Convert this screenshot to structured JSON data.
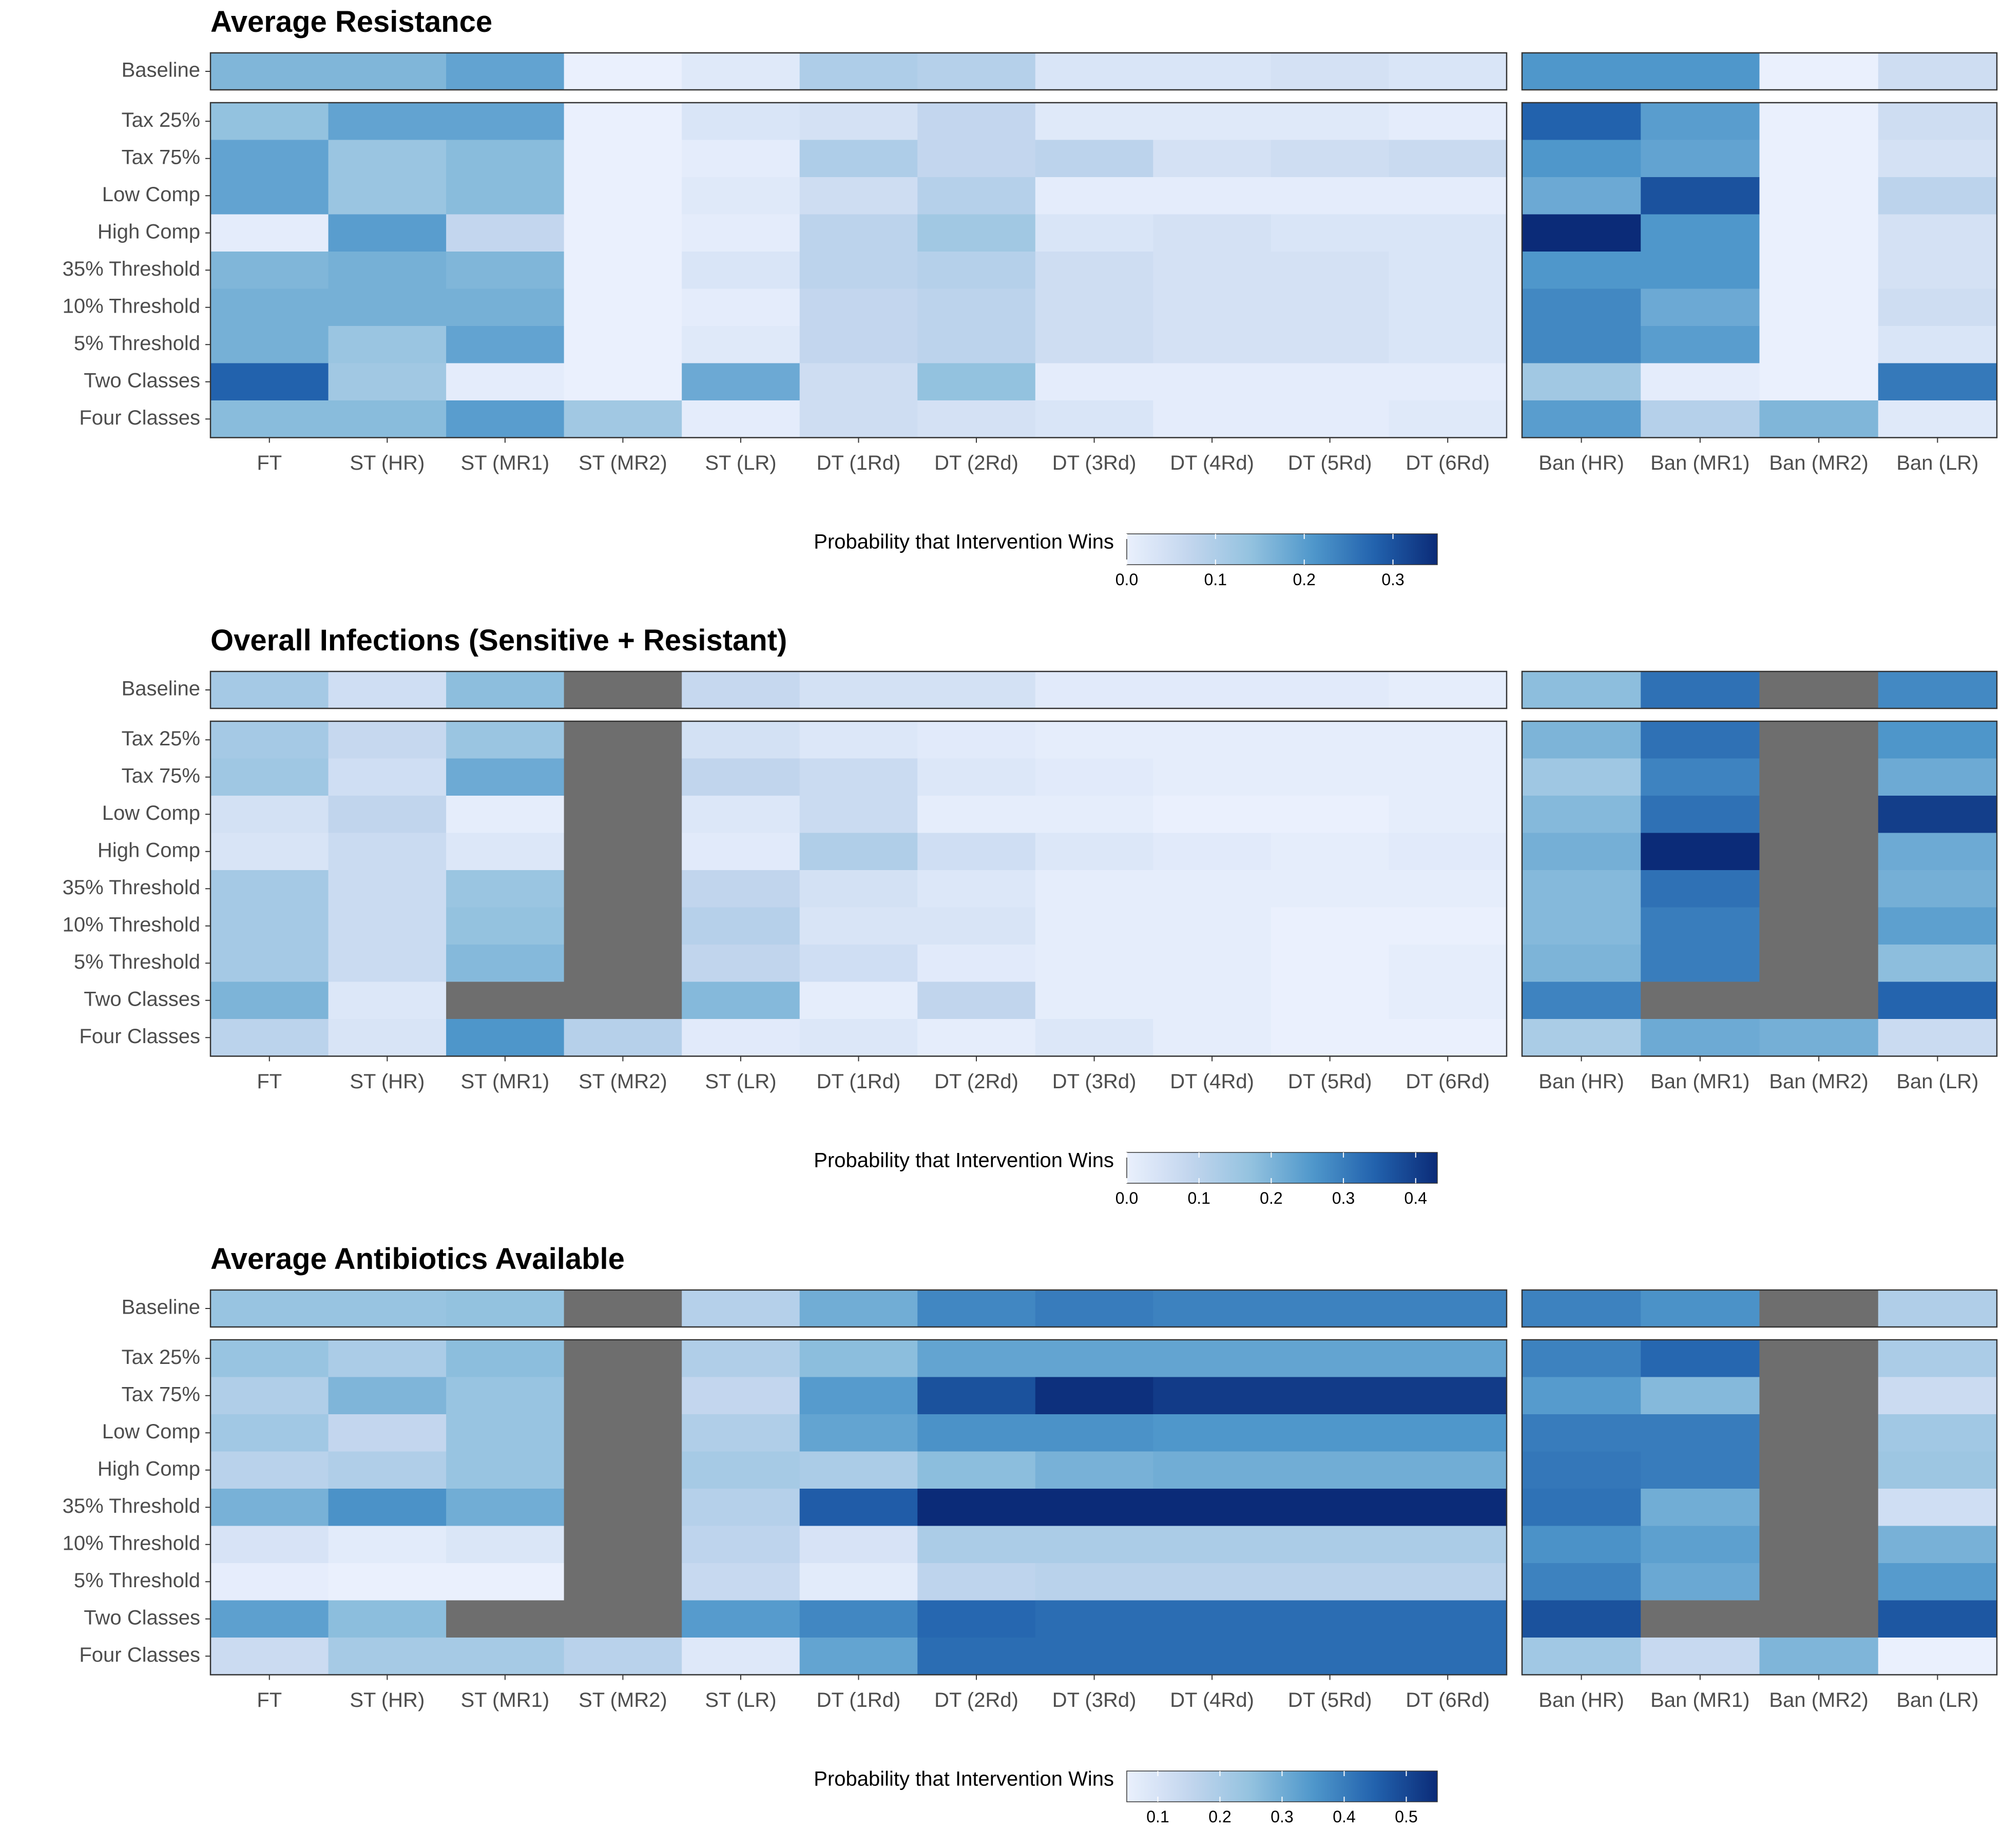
{
  "chart_data": [
    {
      "type": "heatmap",
      "title": "Average Resistance",
      "columns_left": [
        "FT",
        "ST (HR)",
        "ST (MR1)",
        "ST (MR2)",
        "ST (LR)",
        "DT (1Rd)",
        "DT (2Rd)",
        "DT (3Rd)",
        "DT (4Rd)",
        "DT (5Rd)",
        "DT (6Rd)"
      ],
      "columns_right": [
        "Ban (HR)",
        "Ban (MR1)",
        "Ban (MR2)",
        "Ban (LR)"
      ],
      "baseline_label": "Baseline",
      "baseline_left": [
        0.16,
        0.16,
        0.19,
        0.0,
        0.02,
        0.1,
        0.09,
        0.03,
        0.03,
        0.04,
        0.03
      ],
      "baseline_right": [
        0.21,
        0.21,
        0.0,
        0.05
      ],
      "rows": [
        "Tax 25%",
        "Tax 75%",
        "Low Comp",
        "High Comp",
        "35% Threshold",
        "10% Threshold",
        "5% Threshold",
        "Two Classes",
        "Four Classes"
      ],
      "values_left": [
        [
          0.14,
          0.19,
          0.19,
          0.0,
          0.03,
          0.04,
          0.07,
          0.02,
          0.02,
          0.02,
          0.01
        ],
        [
          0.19,
          0.13,
          0.15,
          0.0,
          0.01,
          0.1,
          0.07,
          0.08,
          0.04,
          0.05,
          0.06
        ],
        [
          0.19,
          0.13,
          0.15,
          0.0,
          0.02,
          0.05,
          0.09,
          0.01,
          0.01,
          0.01,
          0.01
        ],
        [
          0.01,
          0.2,
          0.07,
          0.0,
          0.01,
          0.08,
          0.12,
          0.03,
          0.04,
          0.03,
          0.03
        ],
        [
          0.16,
          0.17,
          0.16,
          0.0,
          0.03,
          0.08,
          0.09,
          0.05,
          0.04,
          0.04,
          0.03
        ],
        [
          0.17,
          0.17,
          0.17,
          0.0,
          0.01,
          0.07,
          0.08,
          0.05,
          0.04,
          0.04,
          0.03
        ],
        [
          0.17,
          0.13,
          0.19,
          0.0,
          0.02,
          0.07,
          0.08,
          0.05,
          0.04,
          0.04,
          0.03
        ],
        [
          0.28,
          0.12,
          0.01,
          0.0,
          0.18,
          0.05,
          0.14,
          0.01,
          0.01,
          0.01,
          0.01
        ],
        [
          0.15,
          0.15,
          0.2,
          0.12,
          0.01,
          0.05,
          0.04,
          0.03,
          0.01,
          0.01,
          0.02
        ]
      ],
      "values_right": [
        [
          0.28,
          0.2,
          0.0,
          0.05
        ],
        [
          0.21,
          0.19,
          0.0,
          0.04
        ],
        [
          0.18,
          0.3,
          0.0,
          0.08
        ],
        [
          0.35,
          0.21,
          0.0,
          0.04
        ],
        [
          0.21,
          0.21,
          0.0,
          0.04
        ],
        [
          0.23,
          0.18,
          0.0,
          0.05
        ],
        [
          0.23,
          0.2,
          0.0,
          0.03
        ],
        [
          0.12,
          0.01,
          0.0,
          0.25
        ],
        [
          0.2,
          0.09,
          0.16,
          0.02
        ]
      ],
      "legend_title": "Probability that Intervention Wins",
      "legend_range": [
        0,
        0.35
      ],
      "legend_ticks": [
        0.0,
        0.1,
        0.2,
        0.3
      ],
      "legend_tick_labels": [
        "0.0",
        "0.1",
        "0.2",
        "0.3"
      ]
    },
    {
      "type": "heatmap",
      "title": "Overall Infections (Sensitive + Resistant)",
      "columns_left": [
        "FT",
        "ST (HR)",
        "ST (MR1)",
        "ST (MR2)",
        "ST (LR)",
        "DT (1Rd)",
        "DT (2Rd)",
        "DT (3Rd)",
        "DT (4Rd)",
        "DT (5Rd)",
        "DT (6Rd)"
      ],
      "columns_right": [
        "Ban (HR)",
        "Ban (MR1)",
        "Ban (MR2)",
        "Ban (LR)"
      ],
      "baseline_label": "Baseline",
      "baseline_left": [
        0.14,
        0.06,
        0.18,
        null,
        0.08,
        0.05,
        0.05,
        0.02,
        0.02,
        0.02,
        0.01
      ],
      "baseline_right": [
        0.18,
        0.32,
        null,
        0.28
      ],
      "rows": [
        "Tax 25%",
        "Tax 75%",
        "Low Comp",
        "High Comp",
        "35% Threshold",
        "10% Threshold",
        "5% Threshold",
        "Two Classes",
        "Four Classes"
      ],
      "values_left": [
        [
          0.14,
          0.08,
          0.16,
          null,
          0.05,
          0.03,
          0.02,
          0.01,
          0.01,
          0.01,
          0.01
        ],
        [
          0.15,
          0.06,
          0.22,
          null,
          0.09,
          0.07,
          0.03,
          0.02,
          0.01,
          0.01,
          0.01
        ],
        [
          0.05,
          0.09,
          0.01,
          null,
          0.03,
          0.07,
          0.01,
          0.01,
          0.0,
          0.0,
          0.01
        ],
        [
          0.04,
          0.07,
          0.03,
          null,
          0.02,
          0.12,
          0.06,
          0.03,
          0.02,
          0.01,
          0.02
        ],
        [
          0.14,
          0.07,
          0.16,
          null,
          0.09,
          0.05,
          0.03,
          0.01,
          0.01,
          0.01,
          0.01
        ],
        [
          0.14,
          0.07,
          0.17,
          null,
          0.11,
          0.04,
          0.04,
          0.01,
          0.01,
          0.0,
          0.0
        ],
        [
          0.14,
          0.07,
          0.19,
          null,
          0.09,
          0.06,
          0.02,
          0.01,
          0.01,
          0.0,
          0.01
        ],
        [
          0.2,
          0.03,
          null,
          null,
          0.19,
          0.01,
          0.09,
          0.01,
          0.01,
          0.0,
          0.01
        ],
        [
          0.1,
          0.04,
          0.26,
          0.11,
          0.02,
          0.03,
          0.01,
          0.03,
          0.01,
          0.0,
          0.0
        ]
      ],
      "values_right": [
        [
          0.2,
          0.32,
          null,
          0.26
        ],
        [
          0.15,
          0.29,
          null,
          0.22
        ],
        [
          0.19,
          0.32,
          null,
          0.4
        ],
        [
          0.21,
          0.43,
          null,
          0.22
        ],
        [
          0.19,
          0.32,
          null,
          0.21
        ],
        [
          0.19,
          0.3,
          null,
          0.24
        ],
        [
          0.2,
          0.3,
          null,
          0.18
        ],
        [
          0.29,
          null,
          null,
          0.34
        ],
        [
          0.13,
          0.22,
          0.21,
          0.07
        ]
      ],
      "legend_title": "Probability that Intervention Wins",
      "legend_range": [
        0,
        0.43
      ],
      "legend_ticks": [
        0.0,
        0.1,
        0.2,
        0.3,
        0.4
      ],
      "legend_tick_labels": [
        "0.0",
        "0.1",
        "0.2",
        "0.3",
        "0.4"
      ]
    },
    {
      "type": "heatmap",
      "title": "Average Antibiotics Available",
      "columns_left": [
        "FT",
        "ST (HR)",
        "ST (MR1)",
        "ST (MR2)",
        "ST (LR)",
        "DT (1Rd)",
        "DT (2Rd)",
        "DT (3Rd)",
        "DT (4Rd)",
        "DT (5Rd)",
        "DT (6Rd)"
      ],
      "columns_right": [
        "Ban (HR)",
        "Ban (MR1)",
        "Ban (MR2)",
        "Ban (LR)"
      ],
      "baseline_label": "Baseline",
      "baseline_left": [
        0.24,
        0.24,
        0.25,
        null,
        0.18,
        0.3,
        0.38,
        0.4,
        0.39,
        0.39,
        0.39
      ],
      "baseline_right": [
        0.39,
        0.36,
        null,
        0.19
      ],
      "rows": [
        "Tax 25%",
        "Tax 75%",
        "Low Comp",
        "High Comp",
        "35% Threshold",
        "10% Threshold",
        "5% Threshold",
        "Two Classes",
        "Four Classes"
      ],
      "values_left": [
        [
          0.24,
          0.2,
          0.26,
          null,
          0.19,
          0.26,
          0.32,
          0.32,
          0.32,
          0.32,
          0.32
        ],
        [
          0.19,
          0.28,
          0.24,
          null,
          0.15,
          0.34,
          0.48,
          0.54,
          0.52,
          0.52,
          0.52
        ],
        [
          0.22,
          0.15,
          0.24,
          null,
          0.19,
          0.32,
          0.36,
          0.36,
          0.35,
          0.35,
          0.35
        ],
        [
          0.17,
          0.19,
          0.24,
          null,
          0.21,
          0.2,
          0.26,
          0.29,
          0.3,
          0.3,
          0.3
        ],
        [
          0.29,
          0.36,
          0.3,
          null,
          0.18,
          0.46,
          0.55,
          0.55,
          0.55,
          0.55,
          0.55
        ],
        [
          0.1,
          0.07,
          0.09,
          null,
          0.16,
          0.1,
          0.2,
          0.2,
          0.2,
          0.2,
          0.2
        ],
        [
          0.06,
          0.05,
          0.03,
          null,
          0.14,
          0.07,
          0.16,
          0.17,
          0.17,
          0.17,
          0.17
        ],
        [
          0.33,
          0.26,
          null,
          null,
          0.34,
          0.38,
          0.44,
          0.43,
          0.43,
          0.43,
          0.43
        ],
        [
          0.13,
          0.21,
          0.21,
          0.17,
          0.08,
          0.32,
          0.43,
          0.43,
          0.43,
          0.43,
          0.43
        ]
      ],
      "values_right": [
        [
          0.39,
          0.44,
          null,
          0.2
        ],
        [
          0.34,
          0.27,
          null,
          0.13
        ],
        [
          0.4,
          0.4,
          null,
          0.22
        ],
        [
          0.41,
          0.4,
          null,
          0.23
        ],
        [
          0.42,
          0.3,
          null,
          0.12
        ],
        [
          0.36,
          0.33,
          null,
          0.29
        ],
        [
          0.39,
          0.31,
          null,
          0.34
        ],
        [
          0.48,
          null,
          null,
          0.47
        ],
        [
          0.22,
          0.14,
          0.28,
          0.05
        ]
      ],
      "legend_title": "Probability that Intervention Wins",
      "legend_range": [
        0.05,
        0.55
      ],
      "legend_ticks": [
        0.1,
        0.2,
        0.3,
        0.4,
        0.5
      ],
      "legend_tick_labels": [
        "0.1",
        "0.2",
        "0.3",
        "0.4",
        "0.5"
      ]
    }
  ],
  "colors": {
    "na": "#6e6e6e",
    "scale_low": "#eaf0fd",
    "scale_mid1": "#c3d6ee",
    "scale_mid2": "#93c2df",
    "scale_mid3": "#4f97cb",
    "scale_mid4": "#2262ad",
    "scale_high": "#0b2b78",
    "panel_border": "#333333"
  }
}
